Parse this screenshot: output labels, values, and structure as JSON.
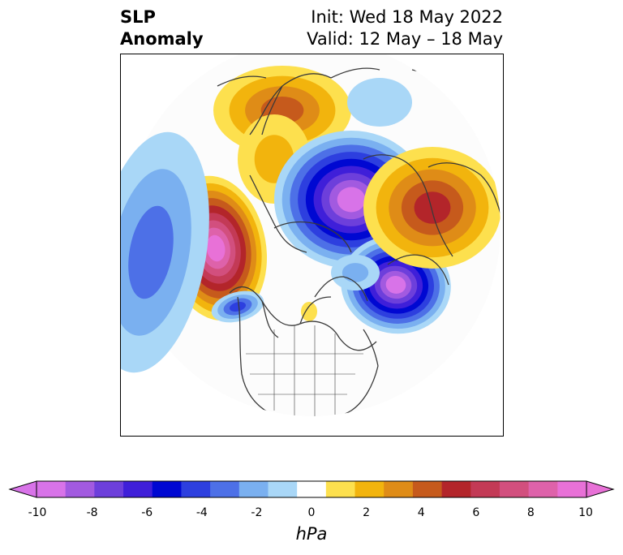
{
  "header": {
    "title_line1": "SLP",
    "title_line2": "Anomaly",
    "init_label": "Init: Wed 18 May 2022",
    "valid_label": "Valid: 12 May – 18 May"
  },
  "map": {
    "projection": "north-polar-stereographic",
    "field": "sea-level pressure anomaly",
    "anomaly_centers": [
      {
        "region": "North Pacific (Gulf of Alaska)",
        "sign": "positive",
        "peak_hpa": 10
      },
      {
        "region": "Arctic Ocean / Siberia",
        "sign": "negative",
        "peak_hpa": -10
      },
      {
        "region": "Scandinavia / Eastern Europe",
        "sign": "positive",
        "peak_hpa": 6
      },
      {
        "region": "North Atlantic / Greenland",
        "sign": "negative",
        "peak_hpa": -10
      },
      {
        "region": "East Asia / Mongolia",
        "sign": "positive",
        "peak_hpa": 5
      },
      {
        "region": "Western North Pacific",
        "sign": "negative",
        "peak_hpa": -4
      },
      {
        "region": "Pacific Northwest coast",
        "sign": "negative",
        "peak_hpa": -4
      }
    ]
  },
  "colorbar": {
    "units": "hPa",
    "extend": "both",
    "tick_labels": [
      "-10",
      "-8",
      "-6",
      "-4",
      "-2",
      "0",
      "2",
      "4",
      "6",
      "8",
      "10"
    ],
    "colors": [
      "#d873e8",
      "#a25ae0",
      "#6d3fdb",
      "#3f1fd9",
      "#0008d2",
      "#2d3fdf",
      "#4d70e7",
      "#7ab0f0",
      "#a9d7f7",
      "#ffffff",
      "#fde04e",
      "#f2b40d",
      "#df8c17",
      "#c65a1c",
      "#b3252a",
      "#c33a56",
      "#d24f7e",
      "#de62aa",
      "#e871d7"
    ],
    "min_color": "#d873e8",
    "max_color": "#e871d7"
  }
}
